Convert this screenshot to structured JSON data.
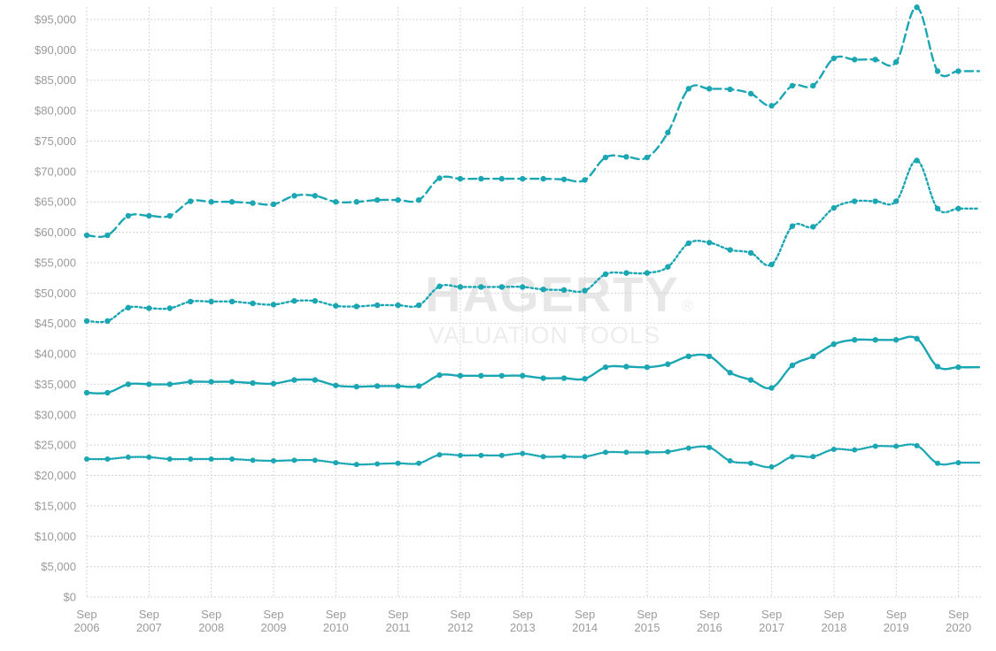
{
  "watermark": {
    "brand": "HAGERTY",
    "registered": "®",
    "subtitle": "VALUATION TOOLS"
  },
  "colors": {
    "series": "#1aa6b2",
    "grid": "#d4d4d4",
    "tick_text": "#9a9a9a"
  },
  "chart_data": {
    "type": "line",
    "title": "",
    "xlabel": "",
    "ylabel": "",
    "ylim": [
      0,
      97000
    ],
    "grid": true,
    "y_ticks": [
      "$0",
      "$5,000",
      "$10,000",
      "$15,000",
      "$20,000",
      "$25,000",
      "$30,000",
      "$35,000",
      "$40,000",
      "$45,000",
      "$50,000",
      "$55,000",
      "$60,000",
      "$65,000",
      "$70,000",
      "$75,000",
      "$80,000",
      "$85,000",
      "$90,000",
      "$95,000"
    ],
    "y_tick_values": [
      0,
      5000,
      10000,
      15000,
      20000,
      25000,
      30000,
      35000,
      40000,
      45000,
      50000,
      55000,
      60000,
      65000,
      70000,
      75000,
      80000,
      85000,
      90000,
      95000
    ],
    "x_ticks": [
      {
        "line1": "Sep",
        "line2": "2006"
      },
      {
        "line1": "Sep",
        "line2": "2007"
      },
      {
        "line1": "Sep",
        "line2": "2008"
      },
      {
        "line1": "Sep",
        "line2": "2009"
      },
      {
        "line1": "Sep",
        "line2": "2010"
      },
      {
        "line1": "Sep",
        "line2": "2011"
      },
      {
        "line1": "Sep",
        "line2": "2012"
      },
      {
        "line1": "Sep",
        "line2": "2013"
      },
      {
        "line1": "Sep",
        "line2": "2014"
      },
      {
        "line1": "Sep",
        "line2": "2015"
      },
      {
        "line1": "Sep",
        "line2": "2016"
      },
      {
        "line1": "Sep",
        "line2": "2017"
      },
      {
        "line1": "Sep",
        "line2": "2018"
      },
      {
        "line1": "Sep",
        "line2": "2019"
      },
      {
        "line1": "Sep",
        "line2": "2020"
      }
    ],
    "x": [
      "2006-09",
      "2007-01",
      "2007-05",
      "2007-09",
      "2008-01",
      "2008-05",
      "2008-09",
      "2009-01",
      "2009-05",
      "2009-09",
      "2010-01",
      "2010-05",
      "2010-09",
      "2011-01",
      "2011-05",
      "2011-09",
      "2012-01",
      "2012-05",
      "2012-09",
      "2013-01",
      "2013-05",
      "2013-09",
      "2014-01",
      "2014-05",
      "2014-09",
      "2015-01",
      "2015-05",
      "2015-09",
      "2016-01",
      "2016-05",
      "2016-09",
      "2017-01",
      "2017-05",
      "2017-09",
      "2018-01",
      "2018-05",
      "2018-09",
      "2019-01",
      "2019-05",
      "2019-09",
      "2020-01",
      "2020-05",
      "2020-09",
      "2021-01"
    ],
    "series": [
      {
        "style": "dashed",
        "values": [
          59500,
          59500,
          62700,
          62700,
          62700,
          65100,
          65000,
          65000,
          64800,
          64600,
          66000,
          66000,
          65000,
          65000,
          65300,
          65300,
          65300,
          68900,
          68800,
          68800,
          68800,
          68800,
          68800,
          68700,
          68600,
          72300,
          72400,
          72300,
          76400,
          83600,
          83600,
          83500,
          82800,
          80800,
          84100,
          84100,
          88600,
          88400,
          88400,
          88000,
          97000,
          86500,
          86500,
          86500
        ]
      },
      {
        "style": "dotted",
        "values": [
          45400,
          45400,
          47600,
          47500,
          47500,
          48600,
          48600,
          48600,
          48300,
          48100,
          48700,
          48700,
          47900,
          47800,
          48000,
          48000,
          48000,
          51100,
          51000,
          51000,
          51000,
          51000,
          50600,
          50500,
          50400,
          53100,
          53300,
          53300,
          54300,
          58200,
          58300,
          57100,
          56600,
          54700,
          61000,
          60900,
          64000,
          65100,
          65100,
          65100,
          71800,
          63900,
          63900,
          63900
        ]
      },
      {
        "style": "solid",
        "values": [
          33600,
          33600,
          35000,
          35000,
          35000,
          35400,
          35400,
          35400,
          35200,
          35100,
          35700,
          35700,
          34800,
          34600,
          34700,
          34700,
          34700,
          36500,
          36400,
          36400,
          36400,
          36400,
          36000,
          36000,
          35900,
          37800,
          37900,
          37800,
          38300,
          39600,
          39600,
          36900,
          35700,
          34400,
          38100,
          39600,
          41600,
          42300,
          42300,
          42300,
          42500,
          37900,
          37800,
          37800
        ]
      },
      {
        "style": "fine-dotted",
        "values": [
          22700,
          22700,
          23000,
          23000,
          22700,
          22700,
          22700,
          22700,
          22500,
          22400,
          22500,
          22500,
          22100,
          21800,
          21900,
          22000,
          22000,
          23400,
          23300,
          23300,
          23300,
          23600,
          23100,
          23100,
          23100,
          23800,
          23800,
          23800,
          23900,
          24500,
          24600,
          22400,
          22000,
          21400,
          23100,
          23100,
          24300,
          24200,
          24800,
          24800,
          24900,
          22000,
          22100,
          22100
        ]
      }
    ]
  }
}
